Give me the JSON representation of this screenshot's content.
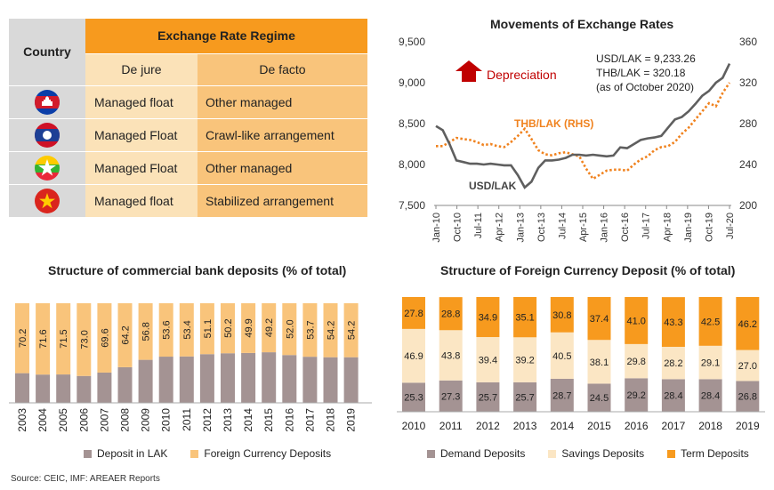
{
  "table": {
    "col_country": "Country",
    "col_regime": "Exchange Rate Regime",
    "col_dejure": "De jure",
    "col_defacto": "De facto",
    "rows": [
      {
        "flag": "cambodia-flag",
        "dejure": "Managed float",
        "defacto": "Other managed"
      },
      {
        "flag": "laos-flag",
        "dejure": "Managed Float",
        "defacto": "Crawl-like arrangement"
      },
      {
        "flag": "myanmar-flag",
        "dejure": "Managed Float",
        "defacto": "Other managed"
      },
      {
        "flag": "vietnam-flag",
        "dejure": "Managed float",
        "defacto": "Stabilized arrangement"
      }
    ]
  },
  "source": "Source: CEIC, IMF: AREAER Reports",
  "colors": {
    "orange": "#f79a1e",
    "light_orange": "#f9c47b",
    "pale_orange": "#fbe2b8",
    "deposit_lak": "#a49393",
    "foreign_deposit": "#f9c47b",
    "demand": "#a49393",
    "savings": "#fbe6c4",
    "term": "#f79a1e",
    "usd_line": "#5f5f5f",
    "thb_line": "#f0821e",
    "arrow": "#c00000"
  },
  "chart_data": [
    {
      "type": "line",
      "title": "Movements of Exchange Rates",
      "x_ticks": [
        "Jan-10",
        "Oct-10",
        "Jul-11",
        "Apr-12",
        "Jan-13",
        "Oct-13",
        "Jul-14",
        "Apr-15",
        "Jan-16",
        "Oct-16",
        "Jul-17",
        "Apr-18",
        "Jan-19",
        "Oct-19",
        "Jul-20"
      ],
      "y_ticks": [
        "7,500",
        "8,000",
        "8,500",
        "9,000",
        "9,500"
      ],
      "ylim": [
        7500,
        9500
      ],
      "y2_ticks": [
        "200",
        "240",
        "280",
        "320",
        "360"
      ],
      "y2lim": [
        200,
        360
      ],
      "annotation_arrow": "Depreciation",
      "annotation_values": [
        "USD/LAK = 9,233.26",
        "THB/LAK = 320.18",
        "(as of  October 2020)"
      ],
      "series": [
        {
          "name": "USD/LAK",
          "axis": "left",
          "style": "solid",
          "x": [
            "2010-01",
            "2010-04",
            "2010-07",
            "2010-10",
            "2011-01",
            "2011-04",
            "2011-07",
            "2011-10",
            "2012-01",
            "2012-04",
            "2012-07",
            "2012-10",
            "2013-01",
            "2013-04",
            "2013-07",
            "2013-10",
            "2014-01",
            "2014-04",
            "2014-07",
            "2014-10",
            "2015-01",
            "2015-04",
            "2015-07",
            "2015-10",
            "2016-01",
            "2016-04",
            "2016-07",
            "2016-10",
            "2017-01",
            "2017-04",
            "2017-07",
            "2017-10",
            "2018-01",
            "2018-04",
            "2018-07",
            "2018-10",
            "2019-01",
            "2019-04",
            "2019-07",
            "2019-10",
            "2020-01",
            "2020-04",
            "2020-07",
            "2020-10"
          ],
          "y": [
            8470,
            8420,
            8250,
            8050,
            8030,
            8010,
            8010,
            8000,
            8010,
            8000,
            7990,
            7990,
            7870,
            7720,
            7790,
            7960,
            8050,
            8050,
            8060,
            8080,
            8120,
            8120,
            8110,
            8120,
            8110,
            8100,
            8110,
            8210,
            8200,
            8250,
            8300,
            8320,
            8330,
            8350,
            8450,
            8550,
            8580,
            8650,
            8740,
            8840,
            8900,
            9000,
            9060,
            9233
          ]
        },
        {
          "name": "THB/LAK (RHS)",
          "axis": "right",
          "style": "dotted",
          "x": [
            "2010-01",
            "2010-04",
            "2010-07",
            "2010-10",
            "2011-01",
            "2011-04",
            "2011-07",
            "2011-10",
            "2012-01",
            "2012-04",
            "2012-07",
            "2012-10",
            "2013-01",
            "2013-04",
            "2013-07",
            "2013-10",
            "2014-01",
            "2014-04",
            "2014-07",
            "2014-10",
            "2015-01",
            "2015-04",
            "2015-07",
            "2015-10",
            "2016-01",
            "2016-04",
            "2016-07",
            "2016-10",
            "2017-01",
            "2017-04",
            "2017-07",
            "2017-10",
            "2018-01",
            "2018-04",
            "2018-07",
            "2018-10",
            "2019-01",
            "2019-04",
            "2019-07",
            "2019-10",
            "2020-01",
            "2020-04",
            "2020-07",
            "2020-10"
          ],
          "y": [
            258,
            258,
            262,
            266,
            265,
            264,
            262,
            259,
            260,
            258,
            257,
            262,
            268,
            275,
            265,
            254,
            250,
            249,
            251,
            252,
            250,
            248,
            236,
            226,
            230,
            234,
            235,
            235,
            234,
            240,
            245,
            248,
            254,
            257,
            258,
            262,
            270,
            276,
            284,
            292,
            300,
            297,
            310,
            320
          ]
        }
      ]
    },
    {
      "type": "bar",
      "stacked": true,
      "title": "Structure of commercial bank deposits (% of total)",
      "categories": [
        "2003",
        "2004",
        "2005",
        "2006",
        "2007",
        "2008",
        "2009",
        "2010",
        "2011",
        "2012",
        "2013",
        "2014",
        "2015",
        "2016",
        "2017",
        "2018",
        "2019"
      ],
      "ylim": [
        0,
        100
      ],
      "series": [
        {
          "name": "Deposit in LAK",
          "values": [
            29.8,
            28.4,
            28.5,
            27.0,
            30.4,
            35.8,
            43.2,
            46.4,
            46.6,
            48.9,
            49.8,
            50.1,
            50.8,
            48.0,
            46.3,
            45.8,
            45.8
          ]
        },
        {
          "name": "Foreign Currency Deposits",
          "values": [
            70.2,
            71.6,
            71.5,
            73.0,
            69.6,
            64.2,
            56.8,
            53.6,
            53.4,
            51.1,
            50.2,
            49.9,
            49.2,
            52.0,
            53.7,
            54.2,
            54.2
          ]
        }
      ],
      "data_labels": [
        "70.2",
        "71.6",
        "71.5",
        "73.0",
        "69.6",
        "64.2",
        "56.8",
        "53.6",
        "53.4",
        "51.1",
        "50.2",
        "49.9",
        "49.2",
        "52.0",
        "53.7",
        "54.2",
        "54.2"
      ]
    },
    {
      "type": "bar",
      "stacked": true,
      "title": "Structure of Foreign Currency Deposit (% of total)",
      "categories": [
        "2010",
        "2011",
        "2012",
        "2013",
        "2014",
        "2015",
        "2016",
        "2017",
        "2018",
        "2019"
      ],
      "ylim": [
        0,
        100
      ],
      "series": [
        {
          "name": "Demand Deposits",
          "values": [
            25.3,
            27.3,
            25.7,
            25.7,
            28.7,
            24.5,
            29.2,
            28.4,
            28.4,
            26.8
          ],
          "labels": [
            "25.3",
            "27.3",
            "25.7",
            "25.7",
            "28.7",
            "24.5",
            "29.2",
            "28.4",
            "28.4",
            "26.8"
          ]
        },
        {
          "name": "Savings Deposits",
          "values": [
            46.9,
            43.8,
            39.4,
            39.2,
            40.5,
            38.1,
            29.8,
            28.2,
            29.1,
            27.0
          ],
          "labels": [
            "46.9",
            "43.8",
            "39.4",
            "39.2",
            "40.5",
            "38.1",
            "29.8",
            "28.2",
            "29.1",
            "27.0"
          ]
        },
        {
          "name": "Term Deposits",
          "values": [
            27.8,
            28.8,
            34.9,
            35.1,
            30.8,
            37.4,
            41.0,
            43.3,
            42.5,
            46.2
          ],
          "labels": [
            "27.8",
            "28.8",
            "34.9",
            "35.1",
            "30.8",
            "37.4",
            "41.0",
            "43.3",
            "42.5",
            "46.2"
          ]
        }
      ]
    }
  ]
}
